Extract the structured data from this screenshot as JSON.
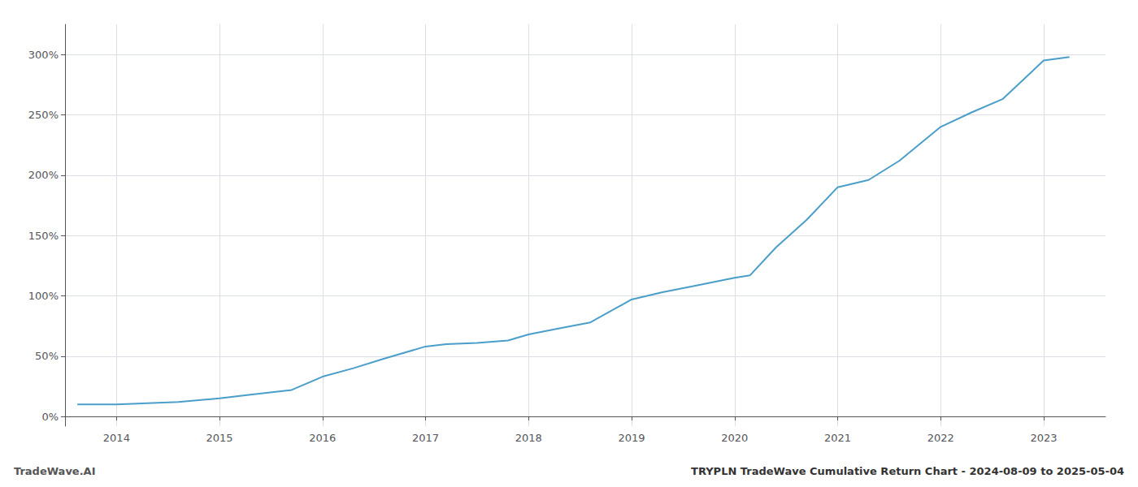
{
  "chart_data": {
    "type": "line",
    "title": "TRYPLN TradeWave Cumulative Return Chart - 2024-08-09 to 2025-05-04",
    "annotations": [
      "TradeWave.AI"
    ],
    "x": [
      2013.62,
      2014.0,
      2014.3,
      2014.6,
      2015.0,
      2015.3,
      2015.7,
      2016.0,
      2016.3,
      2016.6,
      2017.0,
      2017.2,
      2017.5,
      2017.8,
      2018.0,
      2018.3,
      2018.6,
      2019.0,
      2019.3,
      2019.6,
      2020.0,
      2020.15,
      2020.4,
      2020.7,
      2021.0,
      2021.3,
      2021.6,
      2022.0,
      2022.3,
      2022.6,
      2023.0,
      2023.25
    ],
    "values": [
      10,
      10,
      11,
      12,
      15,
      18,
      22,
      33,
      40,
      48,
      58,
      60,
      61,
      63,
      68,
      73,
      78,
      97,
      103,
      108,
      115,
      117,
      140,
      163,
      190,
      196,
      212,
      240,
      252,
      263,
      295,
      298
    ],
    "color": "#4a9ec9",
    "xlim": [
      2013.5,
      2023.6
    ],
    "ylim": [
      -8,
      325
    ],
    "xticks": [
      2014,
      2015,
      2016,
      2017,
      2018,
      2019,
      2020,
      2021,
      2022,
      2023
    ],
    "yticks": [
      {
        "value": 0,
        "label": "0%"
      },
      {
        "value": 50,
        "label": "50%"
      },
      {
        "value": 100,
        "label": "100%"
      },
      {
        "value": 150,
        "label": "150%"
      },
      {
        "value": 200,
        "label": "200%"
      },
      {
        "value": 250,
        "label": "250%"
      },
      {
        "value": 300,
        "label": "300%"
      }
    ],
    "grid": true
  }
}
